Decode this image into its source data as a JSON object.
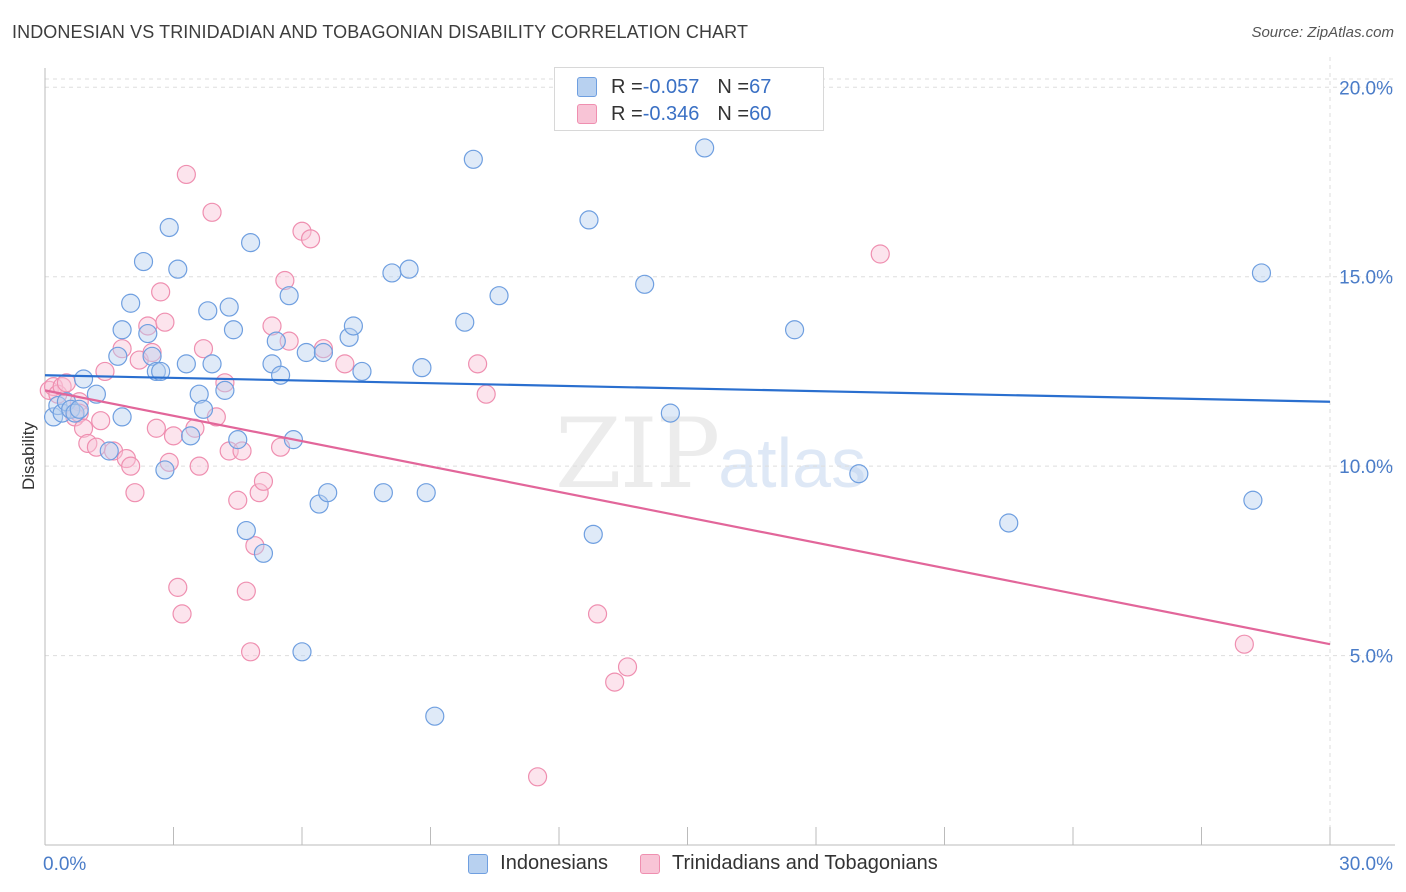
{
  "header": {
    "title": "INDONESIAN VS TRINIDADIAN AND TOBAGONIAN DISABILITY CORRELATION CHART",
    "source": "Source: ZipAtlas.com"
  },
  "watermark": {
    "zip": "ZIP",
    "atlas": "atlas"
  },
  "legend": {
    "rows": [
      {
        "r_label": "R = ",
        "r_value": "-0.057",
        "n_label": "N = ",
        "n_value": "67"
      },
      {
        "r_label": "R = ",
        "r_value": "-0.346",
        "n_label": "N = ",
        "n_value": "60"
      }
    ]
  },
  "bottom_legend": {
    "items": [
      {
        "label": "Indonesians"
      },
      {
        "label": "Trinidadians and Tobagonians"
      }
    ]
  },
  "colors": {
    "indonesians_fill": "#b8d1f0",
    "indonesians_stroke": "#6f9fe0",
    "indonesians_line": "#2a6fcf",
    "trinidad_fill": "#f8c4d6",
    "trinidad_stroke": "#ef8fb0",
    "trinidad_line": "#e2669a",
    "grid": "#dddddd",
    "tick_text": "#4a7cc8"
  },
  "chart_data": {
    "type": "scatter",
    "title": "INDONESIAN VS TRINIDADIAN AND TOBAGONIAN DISABILITY CORRELATION CHART",
    "xlabel": "",
    "ylabel": "Disability",
    "xlim": [
      0,
      30
    ],
    "ylim": [
      0,
      20.8
    ],
    "x_tick_labels": [
      "0.0%",
      "30.0%"
    ],
    "y_ticks": [
      5,
      10,
      15,
      20
    ],
    "y_tick_labels": [
      "5.0%",
      "10.0%",
      "15.0%",
      "20.0%"
    ],
    "grid": "horizontal dashed",
    "legend_position": "top-center",
    "series": [
      {
        "name": "Indonesians",
        "r": -0.057,
        "n": 67,
        "trend": {
          "x": [
            0,
            30
          ],
          "y": [
            12.4,
            11.7
          ]
        },
        "points": [
          [
            0.2,
            11.3
          ],
          [
            0.3,
            11.6
          ],
          [
            0.4,
            11.4
          ],
          [
            0.5,
            11.7
          ],
          [
            0.6,
            11.5
          ],
          [
            0.7,
            11.4
          ],
          [
            0.8,
            11.5
          ],
          [
            0.9,
            12.3
          ],
          [
            1.2,
            11.9
          ],
          [
            1.5,
            10.4
          ],
          [
            1.7,
            12.9
          ],
          [
            1.8,
            13.6
          ],
          [
            1.8,
            11.3
          ],
          [
            2.0,
            14.3
          ],
          [
            2.3,
            15.4
          ],
          [
            2.4,
            13.5
          ],
          [
            2.5,
            12.9
          ],
          [
            2.6,
            12.5
          ],
          [
            2.7,
            12.5
          ],
          [
            2.8,
            9.9
          ],
          [
            2.9,
            16.3
          ],
          [
            3.1,
            15.2
          ],
          [
            3.3,
            12.7
          ],
          [
            3.4,
            10.8
          ],
          [
            3.6,
            11.9
          ],
          [
            3.7,
            11.5
          ],
          [
            3.8,
            14.1
          ],
          [
            3.9,
            12.7
          ],
          [
            4.2,
            12.0
          ],
          [
            4.3,
            14.2
          ],
          [
            4.4,
            13.6
          ],
          [
            4.5,
            10.7
          ],
          [
            4.7,
            8.3
          ],
          [
            4.8,
            15.9
          ],
          [
            5.1,
            7.7
          ],
          [
            5.3,
            12.7
          ],
          [
            5.4,
            13.3
          ],
          [
            5.5,
            12.4
          ],
          [
            5.7,
            14.5
          ],
          [
            5.8,
            10.7
          ],
          [
            6.0,
            5.1
          ],
          [
            6.1,
            13.0
          ],
          [
            6.4,
            9.0
          ],
          [
            6.5,
            13.0
          ],
          [
            6.6,
            9.3
          ],
          [
            7.1,
            13.4
          ],
          [
            7.2,
            13.7
          ],
          [
            7.4,
            12.5
          ],
          [
            7.9,
            9.3
          ],
          [
            8.1,
            15.1
          ],
          [
            8.5,
            15.2
          ],
          [
            8.8,
            12.6
          ],
          [
            8.9,
            9.3
          ],
          [
            9.1,
            3.4
          ],
          [
            9.8,
            13.8
          ],
          [
            10.0,
            18.1
          ],
          [
            10.6,
            14.5
          ],
          [
            12.7,
            16.5
          ],
          [
            12.8,
            8.2
          ],
          [
            14.0,
            14.8
          ],
          [
            14.6,
            11.4
          ],
          [
            15.4,
            18.4
          ],
          [
            17.5,
            13.6
          ],
          [
            19.0,
            9.8
          ],
          [
            22.5,
            8.5
          ],
          [
            28.2,
            9.1
          ],
          [
            28.4,
            15.1
          ]
        ]
      },
      {
        "name": "Trinidadians and Tobagonians",
        "r": -0.346,
        "n": 60,
        "trend": {
          "x": [
            0,
            30
          ],
          "y": [
            12.0,
            5.3
          ]
        },
        "points": [
          [
            0.1,
            12.0
          ],
          [
            0.2,
            12.1
          ],
          [
            0.3,
            11.9
          ],
          [
            0.4,
            12.1
          ],
          [
            0.5,
            12.2
          ],
          [
            0.6,
            11.5
          ],
          [
            0.7,
            11.3
          ],
          [
            0.8,
            11.7
          ],
          [
            0.8,
            11.4
          ],
          [
            0.9,
            11.0
          ],
          [
            1.0,
            10.6
          ],
          [
            1.2,
            10.5
          ],
          [
            1.3,
            11.2
          ],
          [
            1.4,
            12.5
          ],
          [
            1.6,
            10.4
          ],
          [
            1.8,
            13.1
          ],
          [
            1.9,
            10.2
          ],
          [
            2.0,
            10.0
          ],
          [
            2.1,
            9.3
          ],
          [
            2.2,
            12.8
          ],
          [
            2.4,
            13.7
          ],
          [
            2.5,
            13.0
          ],
          [
            2.6,
            11.0
          ],
          [
            2.7,
            14.6
          ],
          [
            2.8,
            13.8
          ],
          [
            2.9,
            10.1
          ],
          [
            3.0,
            10.8
          ],
          [
            3.1,
            6.8
          ],
          [
            3.2,
            6.1
          ],
          [
            3.3,
            17.7
          ],
          [
            3.5,
            11.0
          ],
          [
            3.6,
            10.0
          ],
          [
            3.7,
            13.1
          ],
          [
            3.9,
            16.7
          ],
          [
            4.0,
            11.3
          ],
          [
            4.2,
            12.2
          ],
          [
            4.3,
            10.4
          ],
          [
            4.5,
            9.1
          ],
          [
            4.6,
            10.4
          ],
          [
            4.7,
            6.7
          ],
          [
            4.8,
            5.1
          ],
          [
            4.9,
            7.9
          ],
          [
            5.0,
            9.3
          ],
          [
            5.1,
            9.6
          ],
          [
            5.3,
            13.7
          ],
          [
            5.5,
            10.5
          ],
          [
            5.6,
            14.9
          ],
          [
            5.7,
            13.3
          ],
          [
            6.0,
            16.2
          ],
          [
            6.2,
            16.0
          ],
          [
            6.5,
            13.1
          ],
          [
            7.0,
            12.7
          ],
          [
            10.1,
            12.7
          ],
          [
            10.3,
            11.9
          ],
          [
            11.5,
            1.8
          ],
          [
            12.9,
            6.1
          ],
          [
            13.3,
            4.3
          ],
          [
            13.6,
            4.7
          ],
          [
            19.5,
            15.6
          ],
          [
            28.0,
            5.3
          ]
        ]
      }
    ]
  }
}
